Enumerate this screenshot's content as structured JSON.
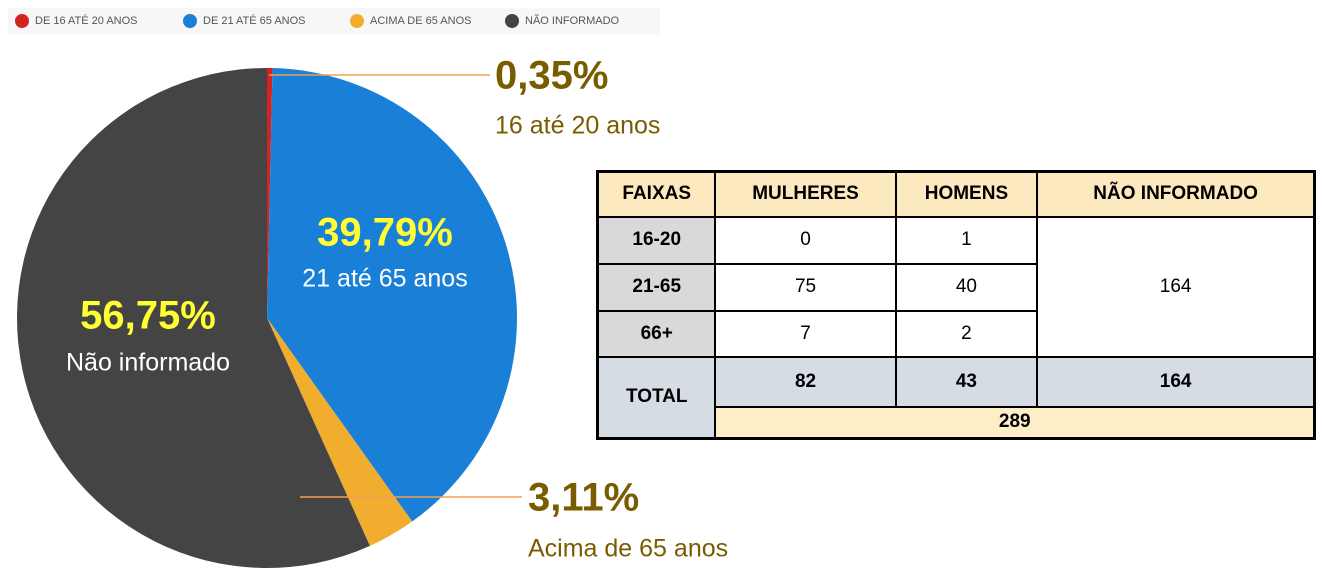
{
  "chart_data": {
    "type": "pie",
    "categories": [
      "DE 16 ATÉ 20 ANOS",
      "DE 21 ATÉ 65 ANOS",
      "ACIMA DE 65 ANOS",
      "NÃO INFORMADO"
    ],
    "values": [
      0.35,
      39.79,
      3.11,
      56.75
    ],
    "value_labels": [
      "0,35%",
      "39,79%",
      "3,11%",
      "56,75%"
    ],
    "slice_labels": [
      "16 até 20 anos",
      "21 até 65 anos",
      "Acima de 65 anos",
      "Não informado"
    ],
    "colors": [
      "#d32222",
      "#1a7fd6",
      "#f0ad2e",
      "#444444"
    ],
    "legend": "top-left"
  },
  "table": {
    "header": [
      "FAIXAS",
      "MULHERES",
      "HOMENS",
      "NÃO INFORMADO"
    ],
    "rows": [
      [
        "16-20",
        0,
        1
      ],
      [
        "21-65",
        75,
        40
      ],
      [
        "66+",
        7,
        2
      ]
    ],
    "nao_informado": 164,
    "total": {
      "label": "TOTAL",
      "values": [
        82,
        43,
        164
      ],
      "grand": 289
    }
  }
}
